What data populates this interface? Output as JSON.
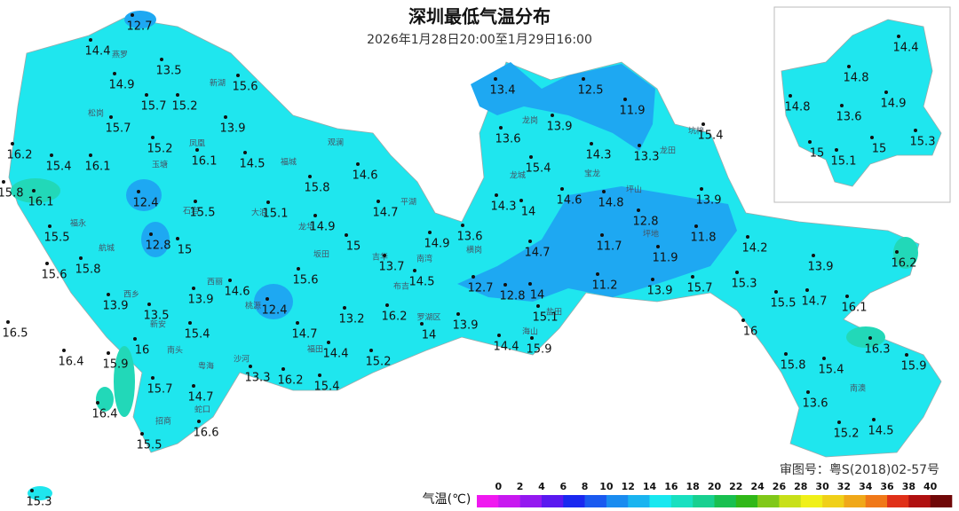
{
  "title": "深圳最低气温分布",
  "subtitle": "2026年1月28日20:00至1月29日16:00",
  "approval": "审图号：粤S(2018)02-57号",
  "stations": [
    12.7,
    14.4,
    13.5,
    14.9,
    15.6,
    15.7,
    15.2,
    15.7,
    13.9,
    15.2,
    14.5,
    16.1,
    16.2,
    15.4,
    16.1,
    15.8,
    16.1,
    12.4,
    15.5,
    15.1,
    15.8,
    14.6,
    14.7,
    14.9,
    15,
    15.5,
    12.8,
    15,
    15.6,
    15.8,
    14.6,
    13.9,
    12.4,
    15.6,
    13.7,
    14.5,
    14.9,
    13.6,
    13.9,
    13.5,
    13.2,
    16.2,
    14,
    13.9,
    16.5,
    15.4,
    14.7,
    14.4,
    16,
    15.9,
    16.4,
    15.2,
    14.4,
    15.9,
    15.1,
    15.7,
    14.7,
    13.3,
    16.2,
    15.4,
    16.4,
    16.6,
    15.5,
    15.3,
    13.4,
    12.5,
    11.9,
    13.6,
    13.9,
    15.4,
    14.3,
    13.3,
    15.4,
    14.3,
    14,
    14.6,
    14.8,
    12.8,
    13.9,
    11.7,
    11.8,
    11.9,
    14.7,
    12.7,
    12.8,
    14,
    11.2,
    13.9,
    15.7,
    15.3,
    14.2,
    13.9,
    16.2,
    15.5,
    14.7,
    16.1,
    16,
    16.3,
    15.8,
    15.4,
    15.9,
    13.6,
    15.2,
    14.5
  ],
  "inset_stations": [
    14.4,
    14.8,
    14.8,
    13.6,
    14.9,
    15.3,
    15,
    15.1,
    15
  ],
  "districts": [
    "燕罗",
    "新湖",
    "松岗",
    "凤凰",
    "玉塘",
    "石岩",
    "福永",
    "航城",
    "西乡",
    "新安",
    "南头",
    "粤海",
    "沙河",
    "招商",
    "蛇口",
    "西丽",
    "桃源",
    "福田",
    "观澜",
    "福城",
    "大浪",
    "龙华",
    "坂田",
    "吉华",
    "南湾",
    "布吉",
    "罗湖区",
    "平湖",
    "横岗",
    "龙岗",
    "龙城",
    "宝龙",
    "坪地",
    "坑梓",
    "坪山",
    "龙田",
    "盐田",
    "海山",
    "南澳"
  ],
  "legend": {
    "title": "气温(℃)",
    "ticks": [
      0,
      2,
      4,
      6,
      8,
      10,
      12,
      14,
      16,
      18,
      20,
      22,
      24,
      26,
      28,
      30,
      32,
      34,
      36,
      38,
      40
    ],
    "colors": [
      "#f018f0",
      "#c818f0",
      "#9418f0",
      "#5a18f0",
      "#1a28f0",
      "#1a5af0",
      "#1a8cf0",
      "#1ab4f0",
      "#18e8f0",
      "#18e0c0",
      "#18d090",
      "#18c050",
      "#30b818",
      "#80c818",
      "#c8e018",
      "#f0f018",
      "#f0d018",
      "#f0a818",
      "#f07818",
      "#e03018",
      "#b01010",
      "#700808"
    ]
  }
}
